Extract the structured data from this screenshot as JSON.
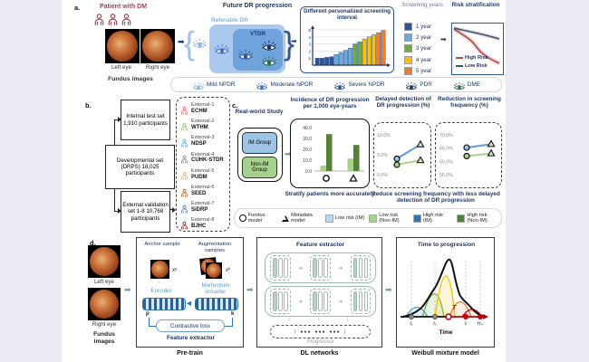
{
  "colors": {
    "page_bg": "#e9eaf4",
    "panel_bg": "#ffffff",
    "navy": "#1f3864",
    "patient_red": "#a94452",
    "referable_box": "#abc9ec",
    "vtdr_box": "#6fa3db",
    "im_fill": "#9dc3e6",
    "nonim_fill": "#a9d18e",
    "high_risk_line": "#b24a4a",
    "low_risk_line": "#44546a"
  },
  "panel_a": {
    "label": "a.",
    "patient_title": "Patient with DM",
    "left_eye": "Left eye",
    "right_eye": "Right eye",
    "fundus_caption": "Fundus images",
    "future_title": "Future DR progression",
    "referable_label": "Referable DR",
    "vtdr_label": "VTDR",
    "interval_title": "Different personalized screening interval",
    "screening_years": {
      "title": "Screening years",
      "items": [
        {
          "label": "1 year",
          "color": "#2f5597"
        },
        {
          "label": "2 year",
          "color": "#6fa8dc"
        },
        {
          "label": "3 year",
          "color": "#70ad47"
        },
        {
          "label": "4 year",
          "color": "#ffc000"
        },
        {
          "label": "5 year",
          "color": "#ed7d31"
        }
      ]
    },
    "risk": {
      "title": "Risk stratification",
      "high_label": "High Risk",
      "low_label": "Low Risk"
    },
    "grades": [
      {
        "label": "Mild NPDR",
        "color": "#8fb4e3"
      },
      {
        "label": "Moderate NPDR",
        "color": "#4472c4"
      },
      {
        "label": "Severe NPDR",
        "color": "#2f5597"
      },
      {
        "label": "PDR",
        "color": "#17375e"
      },
      {
        "label": "DME",
        "color": "#2d6a4f"
      }
    ]
  },
  "panel_b": {
    "label": "b.",
    "internal_box": "Internal test set 1,910 participants",
    "dev_box": "Developmental set (DRPS) 18,025 participants",
    "external_box": "External validation set 1-8 10,768 participants",
    "externals": [
      {
        "id": "External-1",
        "name": "ECHM",
        "color": "#e57373"
      },
      {
        "id": "External-2",
        "name": "WTHM",
        "color": "#93c47d"
      },
      {
        "id": "External-3",
        "name": "NDSP",
        "color": "#6fa8dc"
      },
      {
        "id": "External-4",
        "name": "CUHK-STDR",
        "color": "#8a8a8a"
      },
      {
        "id": "External-5",
        "name": "PUDM",
        "color": "#d9b48f"
      },
      {
        "id": "External-6",
        "name": "SEED",
        "color": "#c55a11"
      },
      {
        "id": "External-7",
        "name": "SiDRP",
        "color": "#5b7fa6"
      },
      {
        "id": "External-8",
        "name": "BJHC",
        "color": "#9c2f2f"
      }
    ]
  },
  "panel_c": {
    "label": "c.",
    "rw_title": "Real-world Study",
    "im_group": "IM Group",
    "nonim_group": "Non-IM Group",
    "incidence_title": "Incidence of DR progression per 1,000 eye-years",
    "stratify_caption": "Stratify patients more accurately",
    "delayed_title": "Delayed detection of DR progression (%)",
    "reduction_title": "Reduction in screening frequency (%)",
    "reduce_caption": "Reduce screening frequency with less delayed detection of DR progression",
    "legend": [
      {
        "label": "Fundus model",
        "kind": "circle"
      },
      {
        "label": "Metadata model",
        "kind": "triangle"
      },
      {
        "label": "Low risk (IM)",
        "kind": "swatch",
        "color": "#bdd7ee"
      },
      {
        "label": "Low risk (Non-IM)",
        "kind": "swatch",
        "color": "#a9d18e"
      },
      {
        "label": "High risk (IM)",
        "kind": "swatch",
        "color": "#2e75b6"
      },
      {
        "label": "High risk (Non-IM)",
        "kind": "swatch",
        "color": "#538135"
      }
    ]
  },
  "panel_d": {
    "label": "d.",
    "left_eye": "Left eye",
    "right_eye": "Right eye",
    "fundus_caption": "Fundus images",
    "pretrain": {
      "anchor": "Anchor sample",
      "aug": "Augmentation samples",
      "xp": "xᵖ",
      "xk": "xᵏ",
      "encoder": "Encoder",
      "momentum": "Momentum encoder",
      "p": "p",
      "k": "k",
      "loss": "Contrastive loss",
      "feature": "Feature extractor",
      "caption": "Pre-train"
    },
    "dl": {
      "feature": "Feature extractor",
      "progressor": "Progressor",
      "caption": "DL networks"
    },
    "weibull": {
      "title": "Time to progression",
      "t_label": "T",
      "ticks": [
        "t₁",
        "t₂",
        "tᵢ",
        "tᴛₙ"
      ],
      "xlabel": "Time",
      "caption": "Weibull mixture model"
    }
  },
  "chart_data": [
    {
      "type": "bar",
      "title": "Different personalized screening interval",
      "ylabel": "Screening interval (years)",
      "ylim": [
        0,
        5
      ],
      "yticks": [
        1,
        2,
        3,
        4,
        5
      ],
      "values": [
        1,
        1,
        1.1,
        1.2,
        1.5,
        1.8,
        2.1,
        2.4,
        3,
        3.3,
        3.7,
        4,
        4.3,
        4.6,
        4.9
      ],
      "bar_years": [
        1,
        1,
        1,
        1,
        2,
        2,
        2,
        2,
        3,
        3,
        4,
        4,
        4,
        5,
        5
      ],
      "year_colors": {
        "1": "#2f5597",
        "2": "#6fa8dc",
        "3": "#70ad47",
        "4": "#ffc000",
        "5": "#ed7d31"
      }
    },
    {
      "type": "bar",
      "title": "Incidence of DR progression per 1,000 eye-years",
      "categories": [
        "Fundus model",
        "Metadata model"
      ],
      "series": [
        {
          "name": "Low risk (Non-IM)",
          "color": "#a9d18e",
          "values": [
            5,
            11.5
          ]
        },
        {
          "name": "High risk (Non-IM)",
          "color": "#538135",
          "values": [
            34,
            24
          ]
        }
      ],
      "ylim": [
        0,
        40
      ],
      "yticks": [
        "0.0",
        "10.0",
        "20.0",
        "30.0",
        "40.0"
      ]
    },
    {
      "type": "line",
      "title": "Delayed detection of DR progression (%)",
      "x": [
        "Fundus model",
        "Metadata model"
      ],
      "ylim": [
        0,
        10
      ],
      "yticks": [
        "0.0%",
        "5.0%",
        "10.0%"
      ],
      "series": [
        {
          "name": "High risk (IM)",
          "color": "#5b9bd5",
          "marker_fill": "#9dc3e6",
          "values": [
            4.0,
            7.6
          ]
        },
        {
          "name": "High risk (Non-IM)",
          "color": "#a9d18e",
          "marker_fill": "#a9d18e",
          "values": [
            2.5,
            3.6
          ]
        }
      ]
    },
    {
      "type": "line",
      "title": "Reduction in screening frequency (%)",
      "x": [
        "Fundus model",
        "Metadata model"
      ],
      "ylim": [
        55,
        70
      ],
      "yticks": [
        "55.0%",
        "60.0%",
        "65.0%",
        "70.0%"
      ],
      "series": [
        {
          "name": "High risk (IM)",
          "color": "#5b9bd5",
          "marker_fill": "#9dc3e6",
          "values": [
            65.2,
            66.5
          ]
        },
        {
          "name": "High risk (Non-IM)",
          "color": "#a9d18e",
          "marker_fill": "#a9d18e",
          "values": [
            62.0,
            63.0
          ]
        }
      ]
    },
    {
      "type": "line",
      "title": "Risk stratification",
      "series": [
        {
          "name": "High Risk",
          "color": "#b24a4a"
        },
        {
          "name": "Low Risk",
          "color": "#44546a"
        }
      ]
    }
  ]
}
